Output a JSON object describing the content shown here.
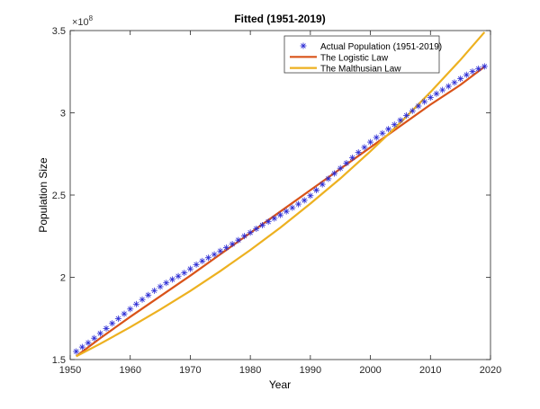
{
  "chart_data": {
    "type": "line",
    "title": "Fitted (1951-2019)",
    "xlabel": "Year",
    "ylabel": "Population Size",
    "y_exponent_label": "×10",
    "y_exponent": "8",
    "xlim": [
      1950,
      2020
    ],
    "ylim": [
      1.5,
      3.5
    ],
    "y_scale_factor": 100000000,
    "xticks": [
      "1950",
      "1960",
      "1970",
      "1980",
      "1990",
      "2000",
      "2010",
      "2020"
    ],
    "yticks": [
      "1.5",
      "2",
      "2.5",
      "3",
      "3.5"
    ],
    "grid": false,
    "legend_position": "top-right",
    "series": [
      {
        "name": "Actual Population (1951-2019)",
        "style": "marker-asterisk",
        "color": "#2a2ad4",
        "x_start": 1951,
        "values": [
          1.549,
          1.576,
          1.602,
          1.63,
          1.659,
          1.689,
          1.72,
          1.749,
          1.778,
          1.807,
          1.837,
          1.865,
          1.892,
          1.919,
          1.943,
          1.966,
          1.987,
          2.007,
          2.027,
          2.051,
          2.077,
          2.099,
          2.119,
          2.139,
          2.16,
          2.18,
          2.202,
          2.226,
          2.251,
          2.272,
          2.295,
          2.317,
          2.338,
          2.358,
          2.379,
          2.401,
          2.423,
          2.445,
          2.468,
          2.496,
          2.53,
          2.565,
          2.599,
          2.631,
          2.663,
          2.694,
          2.727,
          2.759,
          2.79,
          2.822,
          2.85,
          2.876,
          2.901,
          2.928,
          2.955,
          2.984,
          3.012,
          3.041,
          3.068,
          3.093,
          3.116,
          3.139,
          3.161,
          3.184,
          3.207,
          3.231,
          3.251,
          3.268,
          3.282
        ]
      },
      {
        "name": "The Logistic Law",
        "style": "line",
        "color": "#d95319",
        "x": [
          1951,
          1955,
          1960,
          1965,
          1970,
          1975,
          1980,
          1985,
          1990,
          1995,
          2000,
          2005,
          2010,
          2015,
          2019
        ],
        "values": [
          1.52,
          1.63,
          1.76,
          1.885,
          2.01,
          2.14,
          2.27,
          2.4,
          2.53,
          2.66,
          2.79,
          2.92,
          3.05,
          3.17,
          3.28
        ]
      },
      {
        "name": "The Malthusian Law",
        "style": "line",
        "color": "#edb120",
        "x": [
          1951,
          1955,
          1960,
          1965,
          1970,
          1975,
          1980,
          1985,
          1990,
          1995,
          2000,
          2005,
          2010,
          2015,
          2019
        ],
        "values": [
          1.52,
          1.596,
          1.697,
          1.804,
          1.917,
          2.038,
          2.166,
          2.302,
          2.448,
          2.601,
          2.766,
          2.94,
          3.126,
          3.322,
          3.49
        ]
      }
    ]
  }
}
